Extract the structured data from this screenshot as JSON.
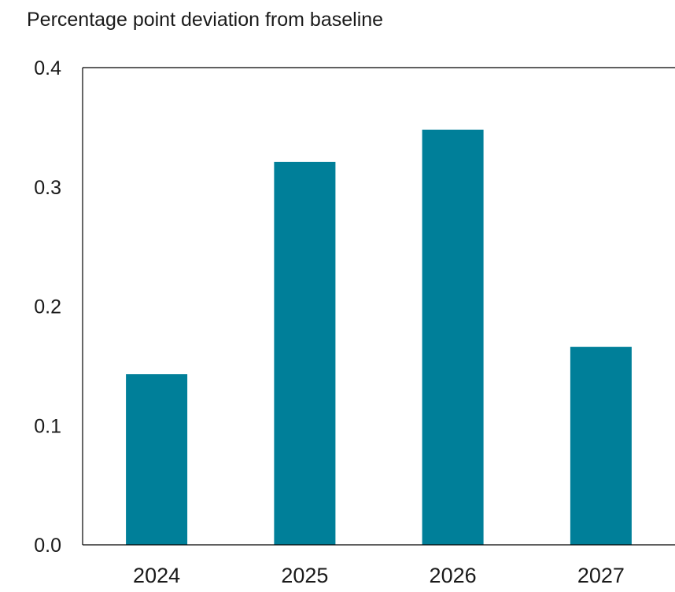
{
  "chart_data": {
    "type": "bar",
    "ylabel": "Percentage point deviation from baseline",
    "categories": [
      "2024",
      "2025",
      "2026",
      "2027"
    ],
    "values": [
      0.143,
      0.321,
      0.348,
      0.166
    ],
    "ylim": [
      0.0,
      0.4
    ],
    "y_ticks": [
      "0.0",
      "0.1",
      "0.2",
      "0.3",
      "0.4"
    ],
    "y_tick_values": [
      0.0,
      0.1,
      0.2,
      0.3,
      0.4
    ],
    "grid": false,
    "legend": "none",
    "colors": {
      "bar": "#007f99",
      "axis": "#000000",
      "text": "#1a1a1a"
    }
  }
}
